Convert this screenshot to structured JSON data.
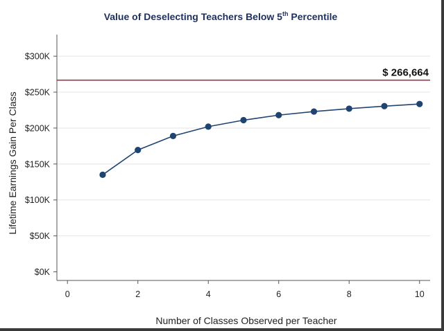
{
  "chart_data": {
    "type": "line",
    "title": {
      "before": "Value of Deselecting Teachers Below 5",
      "sup": "th",
      "after": " Percentile"
    },
    "xlabel": "Number of Classes Observed per Teacher",
    "ylabel": "Lifetime Earnings Gain Per Class",
    "xlim": [
      -0.3,
      10.3
    ],
    "ylim": [
      -12000,
      330000
    ],
    "x_ticks": [
      0,
      2,
      4,
      6,
      8,
      10
    ],
    "x_tick_labels": [
      "0",
      "2",
      "4",
      "6",
      "8",
      "10"
    ],
    "y_ticks": [
      0,
      50000,
      100000,
      150000,
      200000,
      250000,
      300000
    ],
    "y_tick_labels": [
      "$0K",
      "$50K",
      "$100K",
      "$150K",
      "$200K",
      "$250K",
      "$300K"
    ],
    "grid": true,
    "series": [
      {
        "x": [
          1,
          2,
          3,
          4,
          5,
          6,
          7,
          8,
          9,
          10
        ],
        "y": [
          135000,
          169500,
          189000,
          202000,
          211000,
          218000,
          223000,
          227000,
          230500,
          233500
        ],
        "color": "#1f4470"
      }
    ],
    "reference_line": {
      "y": 266664,
      "label": "$ 266,664",
      "color": "#a0283c"
    }
  }
}
